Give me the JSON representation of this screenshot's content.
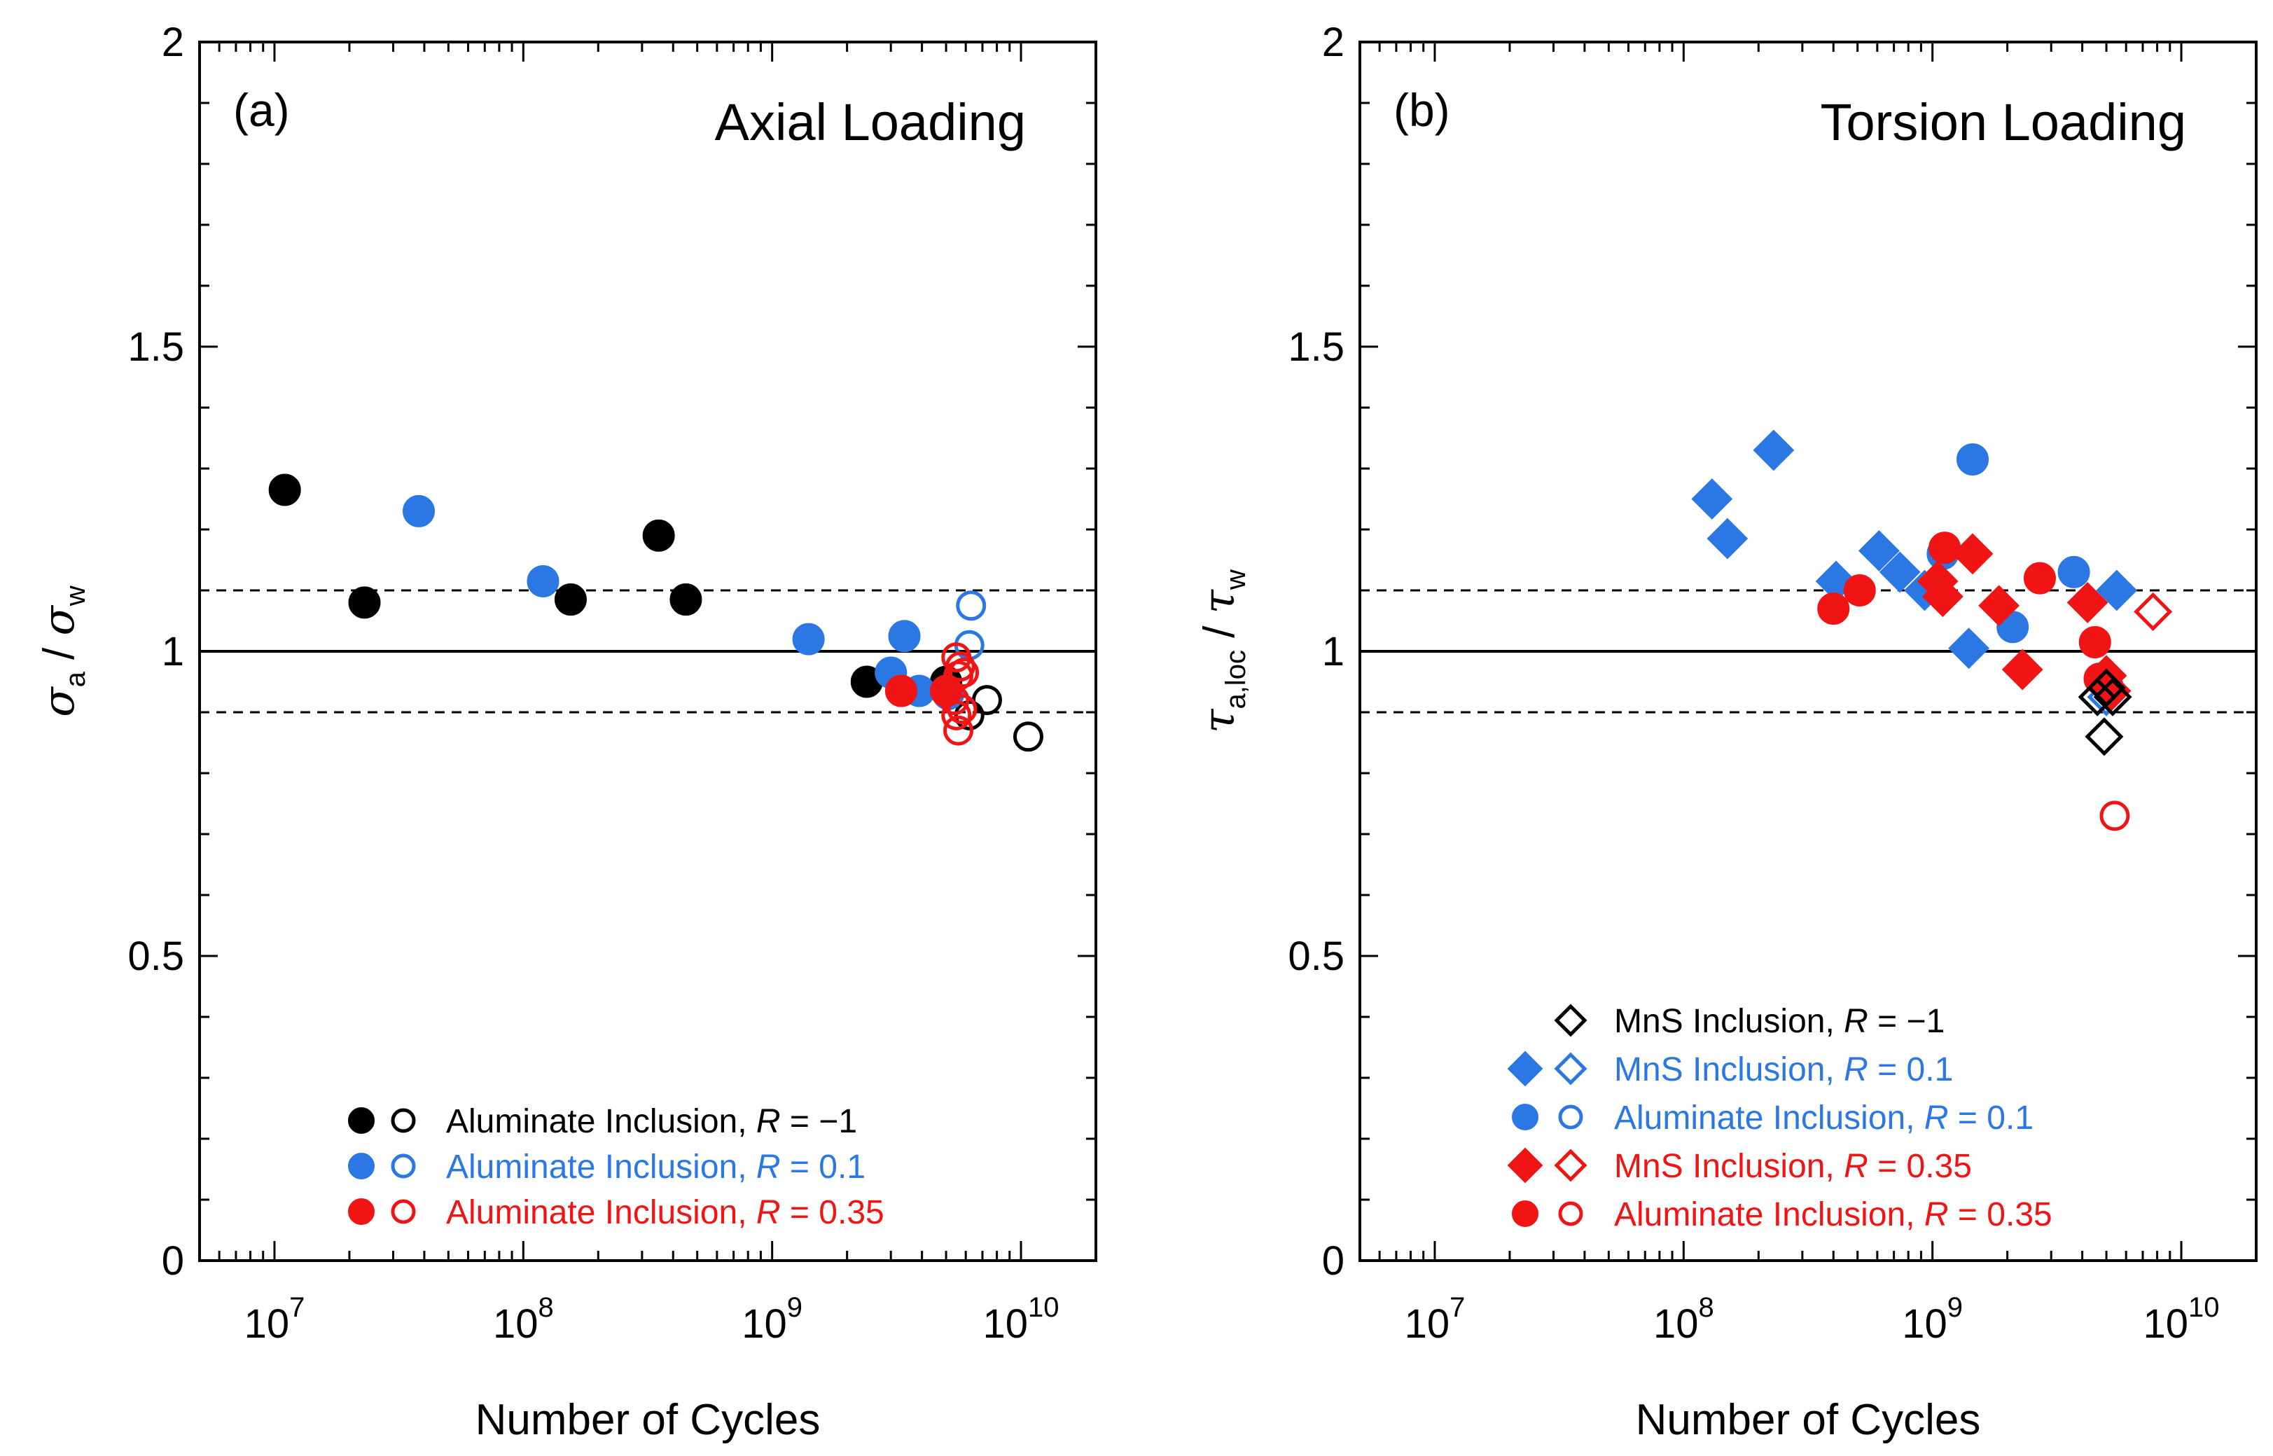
{
  "colors": {
    "black": "#000000",
    "blue": "#2b78e4",
    "red": "#f01414"
  },
  "chart_data": [
    {
      "type": "scatter",
      "panel_label": "(a)",
      "title": "Axial Loading",
      "xlabel": "Number of Cycles",
      "ylabel": {
        "main": "σ",
        "sub": "a",
        "sep": " / ",
        "main2": "σ",
        "sub2": "w"
      },
      "x_scale": "log",
      "xlim": [
        5000000,
        20000000000
      ],
      "ylim": [
        0,
        2
      ],
      "x_ticks": [
        {
          "base": "10",
          "exp": "7"
        },
        {
          "base": "10",
          "exp": "8"
        },
        {
          "base": "10",
          "exp": "9"
        },
        {
          "base": "10",
          "exp": "10"
        }
      ],
      "y_ticks": [
        "0",
        "0.5",
        "1",
        "1.5",
        "2"
      ],
      "y_tick_values": [
        0,
        0.5,
        1,
        1.5,
        2
      ],
      "reference_lines": [
        {
          "y": 1.0,
          "style": "solid"
        },
        {
          "y": 1.1,
          "style": "dashed"
        },
        {
          "y": 0.9,
          "style": "dashed"
        }
      ],
      "legend_position": "bottom-center",
      "legend": [
        {
          "label": "Aluminate Inclusion, ",
          "r_value": "−1",
          "color": "black",
          "marker": "circle"
        },
        {
          "label": "Aluminate Inclusion, ",
          "r_value": "0.1",
          "color": "blue",
          "marker": "circle"
        },
        {
          "label": "Aluminate Inclusion, ",
          "r_value": "0.35",
          "color": "red",
          "marker": "circle"
        }
      ],
      "series": [
        {
          "name": "Aluminate R=-1 failed",
          "color": "black",
          "marker": "circle",
          "filled": true,
          "points": [
            [
              11000000,
              1.265
            ],
            [
              23000000,
              1.08
            ],
            [
              155000000,
              1.085
            ],
            [
              350000000,
              1.19
            ],
            [
              450000000,
              1.085
            ],
            [
              2400000000,
              0.95
            ],
            [
              5000000000,
              0.95
            ]
          ]
        },
        {
          "name": "Aluminate R=-1 runout",
          "color": "black",
          "marker": "circle",
          "filled": false,
          "points": [
            [
              6200000000,
              0.895
            ],
            [
              7300000000,
              0.92
            ],
            [
              10700000000,
              0.86
            ]
          ]
        },
        {
          "name": "Aluminate R=0.1 failed",
          "color": "blue",
          "marker": "circle",
          "filled": true,
          "points": [
            [
              38000000,
              1.23
            ],
            [
              120000000,
              1.115
            ],
            [
              1400000000,
              1.02
            ],
            [
              3000000000,
              0.965
            ],
            [
              3400000000,
              1.025
            ],
            [
              3900000000,
              0.935
            ],
            [
              5100000000,
              0.93
            ]
          ]
        },
        {
          "name": "Aluminate R=0.1 runout",
          "color": "blue",
          "marker": "circle",
          "filled": false,
          "points": [
            [
              6300000000,
              1.075
            ],
            [
              6200000000,
              1.01
            ]
          ]
        },
        {
          "name": "Aluminate R=0.35 failed",
          "color": "red",
          "marker": "circle",
          "filled": true,
          "points": [
            [
              3300000000,
              0.935
            ],
            [
              5000000000,
              0.935
            ]
          ]
        },
        {
          "name": "Aluminate R=0.35 runout",
          "color": "red",
          "marker": "circle",
          "filled": false,
          "points": [
            [
              5500000000,
              0.99
            ],
            [
              5700000000,
              0.975
            ],
            [
              5600000000,
              0.96
            ],
            [
              5900000000,
              0.965
            ],
            [
              5400000000,
              0.92
            ],
            [
              5800000000,
              0.905
            ],
            [
              5500000000,
              0.895
            ],
            [
              5600000000,
              0.87
            ]
          ]
        }
      ]
    },
    {
      "type": "scatter",
      "panel_label": "(b)",
      "title": "Torsion Loading",
      "xlabel": "Number of Cycles",
      "ylabel": {
        "main": "τ",
        "sub": "a,loc",
        "sep": " / ",
        "main2": "τ",
        "sub2": "w"
      },
      "x_scale": "log",
      "xlim": [
        5000000,
        20000000000
      ],
      "ylim": [
        0,
        2
      ],
      "x_ticks": [
        {
          "base": "10",
          "exp": "7"
        },
        {
          "base": "10",
          "exp": "8"
        },
        {
          "base": "10",
          "exp": "9"
        },
        {
          "base": "10",
          "exp": "10"
        }
      ],
      "y_ticks": [
        "0",
        "0.5",
        "1",
        "1.5",
        "2"
      ],
      "y_tick_values": [
        0,
        0.5,
        1,
        1.5,
        2
      ],
      "reference_lines": [
        {
          "y": 1.0,
          "style": "solid"
        },
        {
          "y": 1.1,
          "style": "dashed"
        },
        {
          "y": 0.9,
          "style": "dashed"
        }
      ],
      "legend_position": "bottom-center",
      "legend": [
        {
          "label": "MnS Inclusion, ",
          "r_value": "−1",
          "color": "black",
          "marker": "diamond",
          "open_only": true
        },
        {
          "label": "MnS Inclusion, ",
          "r_value": "0.1",
          "color": "blue",
          "marker": "diamond",
          "open_only": false
        },
        {
          "label": "Aluminate Inclusion, ",
          "r_value": "0.1",
          "color": "blue",
          "marker": "circle",
          "open_only": false
        },
        {
          "label": "MnS Inclusion, ",
          "r_value": "0.35",
          "color": "red",
          "marker": "diamond",
          "open_only": false
        },
        {
          "label": "Aluminate Inclusion, ",
          "r_value": "0.35",
          "color": "red",
          "marker": "circle",
          "open_only": false
        }
      ],
      "series": [
        {
          "name": "MnS R=0.1 failed",
          "color": "blue",
          "marker": "diamond",
          "filled": true,
          "points": [
            [
              130000000,
              1.25
            ],
            [
              150000000,
              1.185
            ],
            [
              230000000,
              1.33
            ],
            [
              410000000,
              1.115
            ],
            [
              610000000,
              1.165
            ],
            [
              740000000,
              1.13
            ],
            [
              930000000,
              1.1
            ],
            [
              1400000000,
              1.005
            ],
            [
              5500000000,
              1.1
            ]
          ]
        },
        {
          "name": "Aluminate R=0.1 failed",
          "color": "blue",
          "marker": "circle",
          "filled": true,
          "points": [
            [
              1450000000,
              1.315
            ],
            [
              2100000000,
              1.04
            ],
            [
              3700000000,
              1.13
            ],
            [
              1100000000,
              1.16
            ]
          ]
        },
        {
          "name": "MnS R=0.1 runout",
          "color": "blue",
          "marker": "diamond",
          "filled": false,
          "points": [
            [
              4900000000,
              0.95
            ],
            [
              5000000000,
              0.925
            ]
          ]
        },
        {
          "name": "MnS R=0.35 failed",
          "color": "red",
          "marker": "diamond",
          "filled": true,
          "points": [
            [
              1050000000,
              1.115
            ],
            [
              1100000000,
              1.09
            ],
            [
              1450000000,
              1.16
            ],
            [
              1850000000,
              1.075
            ],
            [
              2300000000,
              0.97
            ],
            [
              4200000000,
              1.08
            ],
            [
              5000000000,
              0.96
            ],
            [
              5200000000,
              0.935
            ]
          ]
        },
        {
          "name": "Aluminate R=0.35 failed",
          "color": "red",
          "marker": "circle",
          "filled": true,
          "points": [
            [
              400000000,
              1.07
            ],
            [
              510000000,
              1.1
            ],
            [
              1120000000,
              1.17
            ],
            [
              2700000000,
              1.12
            ],
            [
              4500000000,
              1.015
            ],
            [
              4700000000,
              0.955
            ]
          ]
        },
        {
          "name": "MnS R=0.35 runout",
          "color": "red",
          "marker": "diamond",
          "filled": false,
          "points": [
            [
              7700000000,
              1.065
            ]
          ]
        },
        {
          "name": "Aluminate R=0.35 runout",
          "color": "red",
          "marker": "circle",
          "filled": false,
          "points": [
            [
              5400000000,
              0.73
            ]
          ]
        },
        {
          "name": "MnS R=-1 runout",
          "color": "black",
          "marker": "diamond",
          "filled": false,
          "points": [
            [
              4600000000,
              0.925
            ],
            [
              5000000000,
              0.94
            ],
            [
              5300000000,
              0.925
            ],
            [
              4900000000,
              0.86
            ]
          ]
        }
      ]
    }
  ]
}
